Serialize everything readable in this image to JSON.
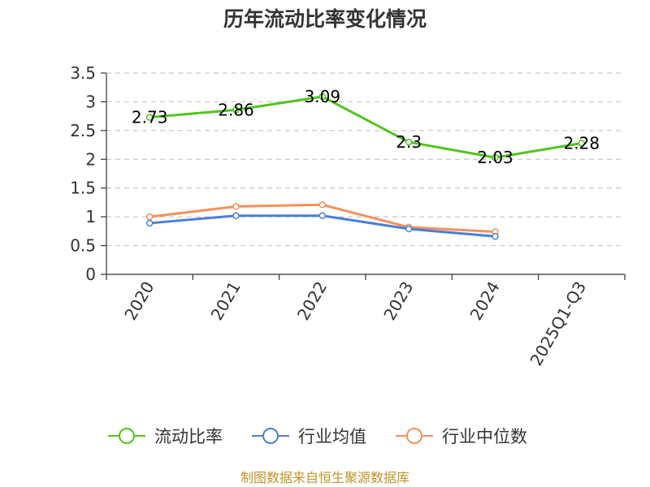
{
  "chart_data": {
    "type": "line",
    "title": "历年流动比率变化情况",
    "categories": [
      "2020",
      "2021",
      "2022",
      "2023",
      "2024",
      "2025Q1-Q3"
    ],
    "ylim": [
      0,
      3.5
    ],
    "yticks": [
      "0",
      "0.5",
      "1",
      "1.5",
      "2",
      "2.5",
      "3",
      "3.5"
    ],
    "grid": true,
    "legend_position": "bottom",
    "series": [
      {
        "name": "流动比率",
        "color": "#52c41a",
        "values": [
          2.73,
          2.86,
          3.09,
          2.3,
          2.03,
          2.28
        ],
        "labels": [
          "2.73",
          "2.86",
          "3.09",
          "2.3",
          "2.03",
          "2.28"
        ]
      },
      {
        "name": "行业均值",
        "color": "#4a7fd8",
        "values": [
          0.89,
          1.02,
          1.02,
          0.79,
          0.66,
          null
        ]
      },
      {
        "name": "行业中位数",
        "color": "#f5905c",
        "values": [
          1.0,
          1.18,
          1.21,
          0.82,
          0.74,
          null
        ]
      }
    ]
  },
  "source": {
    "text": "制图数据来自恒生聚源数据库",
    "color": "#c0932a"
  }
}
